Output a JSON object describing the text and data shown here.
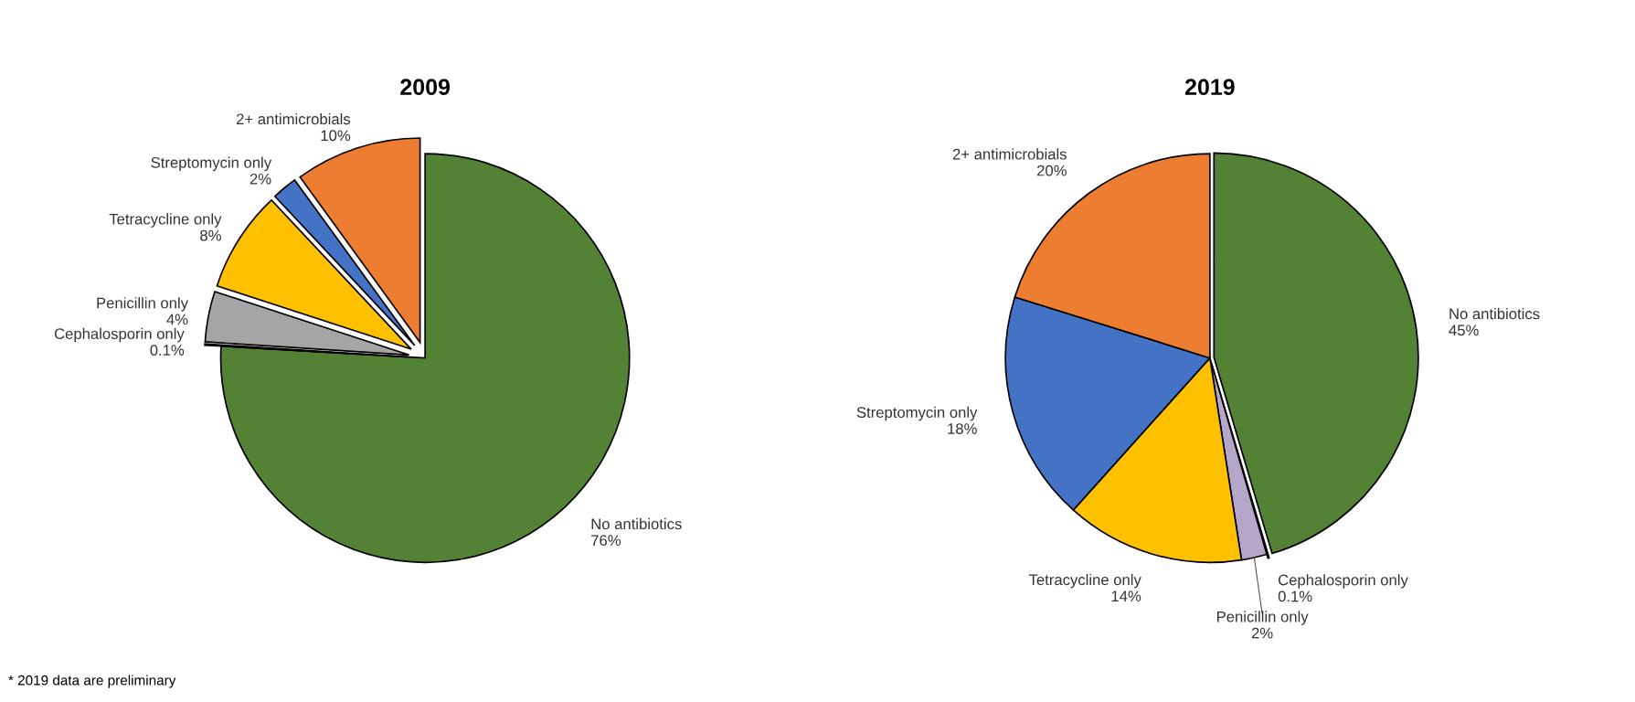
{
  "chart_data": [
    {
      "type": "pie",
      "title": "2009",
      "categories": [
        "No antibiotics",
        "Cephalosporin only",
        "Penicillin only",
        "Tetracycline only",
        "Streptomycin only",
        "2+ antimicrobials"
      ],
      "values": [
        76,
        0.1,
        4,
        8,
        2,
        10
      ],
      "value_labels": [
        "76%",
        "0.1%",
        "4%",
        "8%",
        "2%",
        "10%"
      ],
      "colors": [
        "#548235",
        "#7f6fa0",
        "#a5a5a5",
        "#ffc000",
        "#4472c4",
        "#ed7d31"
      ],
      "annotations": [
        "* 2019 data are preliminary"
      ]
    },
    {
      "type": "pie",
      "title": "2019",
      "categories": [
        "No antibiotics",
        "Cephalosporin only",
        "Penicillin only",
        "Tetracycline only",
        "Streptomycin only",
        "2+ antimicrobials"
      ],
      "values": [
        45,
        0.1,
        2,
        14,
        18,
        20
      ],
      "value_labels": [
        "45%",
        "0.1%",
        "2%",
        "14%",
        "18%",
        "20%"
      ],
      "colors": [
        "#548235",
        "#7f6fa0",
        "#b4a7c9",
        "#ffc000",
        "#4472c4",
        "#ed7d31"
      ]
    }
  ]
}
